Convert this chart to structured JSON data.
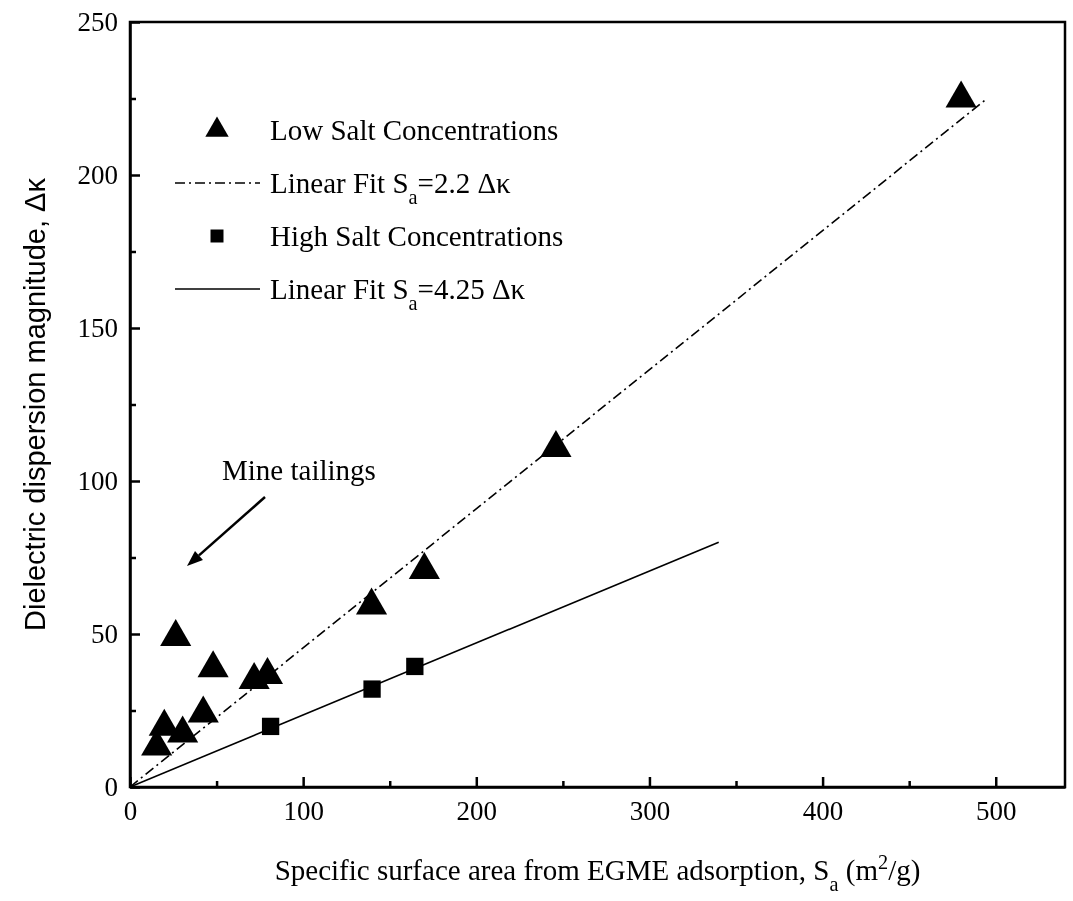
{
  "chart_data": {
    "type": "scatter",
    "xlabel": "Specific surface area from EGME adsorption, S$_{a}$ (m$^{2}$/g)",
    "ylabel": "Dielectric dispersion magnitude, Δκ",
    "xlim": [
      0,
      540
    ],
    "ylim": [
      0,
      250
    ],
    "xticks": [
      0,
      {
        "value": 50,
        "label": null
      },
      100,
      {
        "value": 150,
        "label": null
      },
      200,
      {
        "value": 250,
        "label": null
      },
      300,
      {
        "value": 350,
        "label": null
      },
      400,
      {
        "value": 450,
        "label": null
      },
      500
    ],
    "yticks": [
      0,
      {
        "value": 25,
        "label": null
      },
      50,
      {
        "value": 75,
        "label": null
      },
      100,
      {
        "value": 125,
        "label": null
      },
      150,
      {
        "value": 175,
        "label": null
      },
      200,
      {
        "value": 225,
        "label": null
      },
      250
    ],
    "grid": false,
    "legend": "top left",
    "series": [
      {
        "name": "Low Salt Concentrations",
        "marker": "triangle",
        "color": "#000000",
        "x": [
          15.4,
          19.8,
          30.4,
          26.4,
          42.3,
          48,
          71.7,
          79.4,
          139.5,
          170,
          246,
          480
        ],
        "values": [
          13.2,
          19.7,
          17.5,
          49,
          24,
          38.8,
          35,
          36.6,
          59.3,
          70.9,
          110.8,
          225
        ]
      },
      {
        "name": "Linear Fit S$_{a}$=2.2 Δκ",
        "type": "line",
        "marker": "none",
        "line_style": "dashed",
        "color": "#000000",
        "x": [
          0,
          495
        ],
        "values": [
          0,
          225
        ]
      },
      {
        "name": "High Salt Concentrations",
        "marker": "square",
        "color": "#000000",
        "x": [
          81.2,
          139.8,
          164.5
        ],
        "values": [
          19.8,
          32,
          39.4
        ]
      },
      {
        "name": "Linear Fit S$_{a}$=4.25 Δκ",
        "type": "line",
        "marker": "none",
        "line_style": "solid",
        "color": "#000000",
        "x": [
          0,
          340
        ],
        "values": [
          0,
          80
        ]
      }
    ],
    "annotations": [
      "Mine tailings"
    ]
  }
}
